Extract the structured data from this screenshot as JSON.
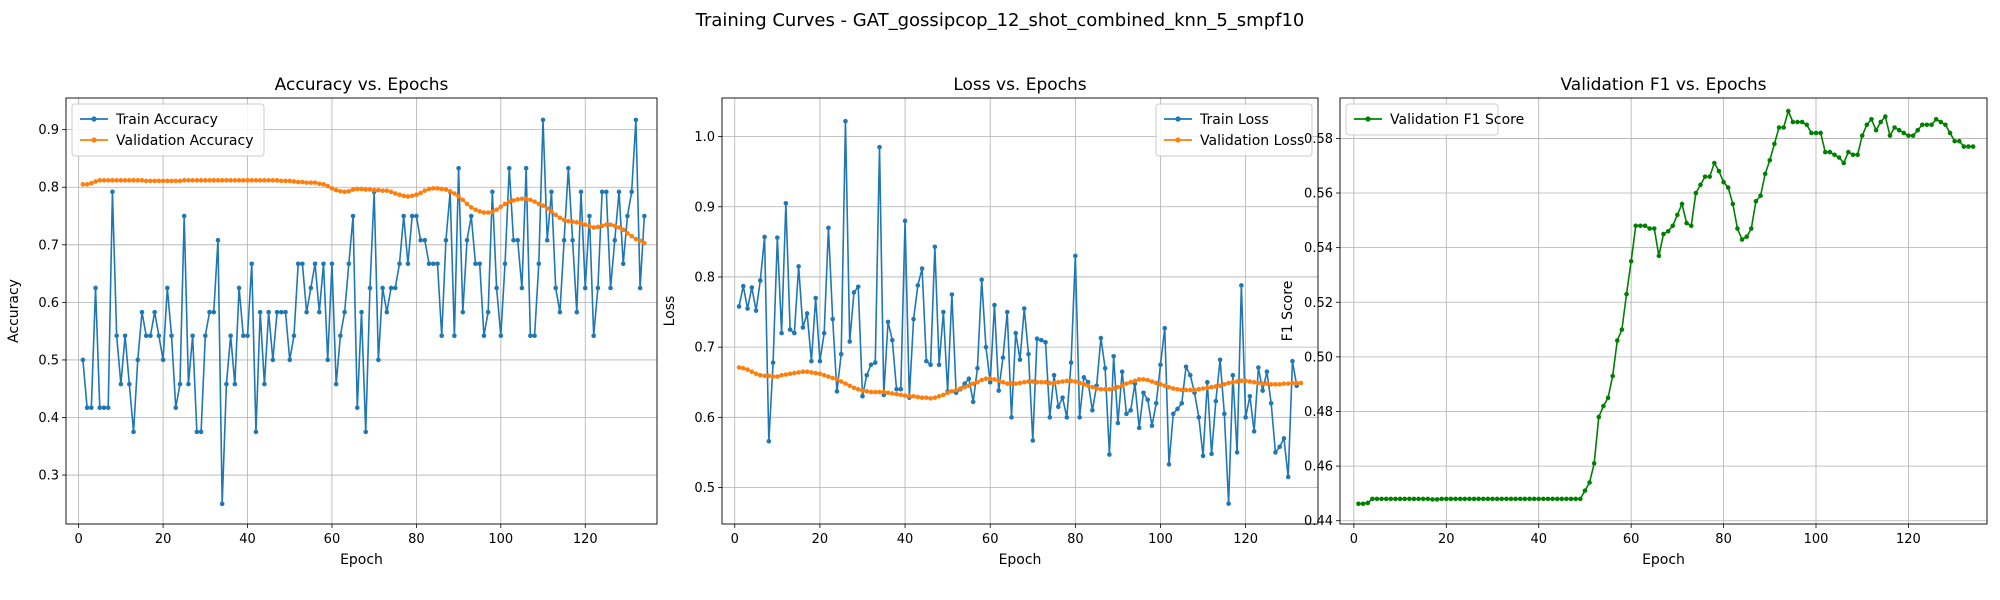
{
  "figure": {
    "title": "Training Curves - GAT_gossipcop_12_shot_combined_knn_5_smpf10"
  },
  "colors": {
    "train": "#1f77b4",
    "val": "#ff7f0e",
    "f1": "#008000"
  },
  "chart_data": [
    {
      "type": "line",
      "title": "Accuracy vs. Epochs",
      "xlabel": "Epoch",
      "ylabel": "Accuracy",
      "xlim": [
        -3,
        137
      ],
      "ylim": [
        0.215,
        0.955
      ],
      "xticks": [
        0,
        20,
        40,
        60,
        80,
        100,
        120
      ],
      "yticks": [
        0.3,
        0.4,
        0.5,
        0.6,
        0.7,
        0.8,
        0.9
      ],
      "grid": true,
      "legend": "upper-left",
      "series": [
        {
          "name": "Train Accuracy",
          "color": "#1f77b4",
          "x_start": 1,
          "values": [
            0.5,
            0.417,
            0.417,
            0.625,
            0.417,
            0.417,
            0.417,
            0.792,
            0.542,
            0.458,
            0.542,
            0.458,
            0.375,
            0.5,
            0.583,
            0.542,
            0.542,
            0.583,
            0.542,
            0.5,
            0.625,
            0.542,
            0.417,
            0.458,
            0.75,
            0.458,
            0.542,
            0.375,
            0.375,
            0.542,
            0.583,
            0.583,
            0.708,
            0.25,
            0.458,
            0.542,
            0.458,
            0.625,
            0.542,
            0.542,
            0.667,
            0.375,
            0.583,
            0.458,
            0.583,
            0.5,
            0.583,
            0.583,
            0.583,
            0.5,
            0.542,
            0.667,
            0.667,
            0.583,
            0.625,
            0.667,
            0.583,
            0.667,
            0.5,
            0.667,
            0.458,
            0.542,
            0.583,
            0.667,
            0.75,
            0.417,
            0.583,
            0.375,
            0.625,
            0.792,
            0.5,
            0.625,
            0.583,
            0.625,
            0.625,
            0.667,
            0.75,
            0.667,
            0.75,
            0.75,
            0.708,
            0.708,
            0.667,
            0.667,
            0.667,
            0.542,
            0.708,
            0.792,
            0.542,
            0.833,
            0.583,
            0.708,
            0.75,
            0.667,
            0.667,
            0.542,
            0.583,
            0.792,
            0.625,
            0.542,
            0.667,
            0.833,
            0.708,
            0.708,
            0.625,
            0.833,
            0.542,
            0.542,
            0.667,
            0.917,
            0.708,
            0.792,
            0.625,
            0.583,
            0.708,
            0.833,
            0.708,
            0.583,
            0.792,
            0.625,
            0.75,
            0.542,
            0.625,
            0.792,
            0.792,
            0.625,
            0.708,
            0.792,
            0.667,
            0.75,
            0.792,
            0.917,
            0.625,
            0.75
          ]
        },
        {
          "name": "Validation Accuracy",
          "color": "#ff7f0e",
          "x_start": 1,
          "values": [
            0.805,
            0.805,
            0.807,
            0.81,
            0.812,
            0.812,
            0.812,
            0.812,
            0.812,
            0.812,
            0.812,
            0.812,
            0.812,
            0.812,
            0.812,
            0.811,
            0.811,
            0.811,
            0.811,
            0.811,
            0.811,
            0.811,
            0.811,
            0.811,
            0.812,
            0.812,
            0.812,
            0.812,
            0.812,
            0.812,
            0.812,
            0.812,
            0.812,
            0.812,
            0.812,
            0.812,
            0.812,
            0.812,
            0.812,
            0.812,
            0.812,
            0.812,
            0.812,
            0.812,
            0.812,
            0.812,
            0.812,
            0.811,
            0.811,
            0.811,
            0.81,
            0.809,
            0.809,
            0.808,
            0.808,
            0.808,
            0.806,
            0.805,
            0.802,
            0.798,
            0.795,
            0.793,
            0.792,
            0.793,
            0.796,
            0.797,
            0.797,
            0.796,
            0.796,
            0.795,
            0.795,
            0.794,
            0.794,
            0.792,
            0.789,
            0.787,
            0.785,
            0.784,
            0.785,
            0.787,
            0.79,
            0.794,
            0.797,
            0.798,
            0.798,
            0.797,
            0.796,
            0.793,
            0.789,
            0.784,
            0.778,
            0.771,
            0.765,
            0.761,
            0.758,
            0.756,
            0.756,
            0.757,
            0.761,
            0.766,
            0.771,
            0.775,
            0.777,
            0.779,
            0.78,
            0.78,
            0.778,
            0.775,
            0.771,
            0.768,
            0.763,
            0.758,
            0.752,
            0.747,
            0.743,
            0.741,
            0.74,
            0.739,
            0.737,
            0.735,
            0.732,
            0.73,
            0.731,
            0.733,
            0.735,
            0.735,
            0.733,
            0.73,
            0.726,
            0.72,
            0.715,
            0.71,
            0.707,
            0.703
          ]
        }
      ]
    },
    {
      "type": "line",
      "title": "Loss vs. Epochs",
      "xlabel": "Epoch",
      "ylabel": "Loss",
      "xlim": [
        -3,
        137
      ],
      "ylim": [
        0.448,
        1.055
      ],
      "xticks": [
        0,
        20,
        40,
        60,
        80,
        100,
        120
      ],
      "yticks": [
        0.5,
        0.6,
        0.7,
        0.8,
        0.9,
        1.0
      ],
      "grid": true,
      "legend": "upper-right",
      "series": [
        {
          "name": "Train Loss",
          "color": "#1f77b4",
          "x_start": 1,
          "values": [
            0.758,
            0.787,
            0.755,
            0.785,
            0.752,
            0.795,
            0.857,
            0.566,
            0.678,
            0.856,
            0.72,
            0.905,
            0.725,
            0.72,
            0.815,
            0.728,
            0.748,
            0.68,
            0.77,
            0.68,
            0.72,
            0.87,
            0.74,
            0.637,
            0.69,
            1.022,
            0.708,
            0.778,
            0.786,
            0.63,
            0.66,
            0.675,
            0.678,
            0.985,
            0.632,
            0.736,
            0.71,
            0.64,
            0.64,
            0.88,
            0.628,
            0.74,
            0.788,
            0.812,
            0.68,
            0.675,
            0.843,
            0.675,
            0.75,
            0.637,
            0.775,
            0.635,
            0.64,
            0.648,
            0.655,
            0.622,
            0.67,
            0.796,
            0.7,
            0.65,
            0.76,
            0.638,
            0.685,
            0.75,
            0.6,
            0.72,
            0.682,
            0.755,
            0.69,
            0.567,
            0.712,
            0.71,
            0.707,
            0.6,
            0.66,
            0.615,
            0.628,
            0.6,
            0.678,
            0.83,
            0.6,
            0.657,
            0.65,
            0.61,
            0.645,
            0.713,
            0.67,
            0.547,
            0.687,
            0.592,
            0.665,
            0.605,
            0.61,
            0.648,
            0.585,
            0.635,
            0.625,
            0.588,
            0.62,
            0.675,
            0.727,
            0.533,
            0.605,
            0.612,
            0.62,
            0.672,
            0.66,
            0.635,
            0.6,
            0.545,
            0.65,
            0.548,
            0.623,
            0.682,
            0.605,
            0.477,
            0.66,
            0.55,
            0.788,
            0.6,
            0.63,
            0.58,
            0.671,
            0.638,
            0.665,
            0.62,
            0.55,
            0.558,
            0.57,
            0.515,
            0.68,
            0.645
          ]
        },
        {
          "name": "Validation Loss",
          "color": "#ff7f0e",
          "x_start": 1,
          "values": [
            0.671,
            0.67,
            0.668,
            0.665,
            0.662,
            0.66,
            0.659,
            0.659,
            0.658,
            0.658,
            0.66,
            0.661,
            0.662,
            0.663,
            0.664,
            0.665,
            0.665,
            0.664,
            0.663,
            0.662,
            0.66,
            0.658,
            0.656,
            0.654,
            0.651,
            0.648,
            0.645,
            0.642,
            0.64,
            0.638,
            0.637,
            0.636,
            0.636,
            0.636,
            0.636,
            0.635,
            0.634,
            0.633,
            0.632,
            0.631,
            0.63,
            0.63,
            0.629,
            0.628,
            0.628,
            0.627,
            0.628,
            0.63,
            0.632,
            0.635,
            0.637,
            0.639,
            0.641,
            0.643,
            0.645,
            0.648,
            0.65,
            0.653,
            0.655,
            0.655,
            0.654,
            0.652,
            0.65,
            0.648,
            0.648,
            0.648,
            0.649,
            0.65,
            0.651,
            0.651,
            0.65,
            0.65,
            0.65,
            0.649,
            0.649,
            0.65,
            0.651,
            0.652,
            0.652,
            0.651,
            0.649,
            0.647,
            0.645,
            0.643,
            0.641,
            0.64,
            0.64,
            0.64,
            0.641,
            0.643,
            0.645,
            0.648,
            0.65,
            0.652,
            0.654,
            0.654,
            0.653,
            0.651,
            0.649,
            0.647,
            0.645,
            0.643,
            0.641,
            0.64,
            0.639,
            0.639,
            0.639,
            0.639,
            0.64,
            0.641,
            0.642,
            0.643,
            0.644,
            0.645,
            0.647,
            0.649,
            0.65,
            0.651,
            0.652,
            0.652,
            0.651,
            0.65,
            0.649,
            0.648,
            0.648,
            0.647,
            0.647,
            0.647,
            0.648,
            0.648,
            0.649,
            0.649,
            0.649
          ]
        }
      ]
    },
    {
      "type": "line",
      "title": "Validation F1 vs. Epochs",
      "xlabel": "Epoch",
      "ylabel": "F1 Score",
      "xlim": [
        -3,
        137
      ],
      "ylim": [
        0.4388,
        0.5948
      ],
      "xticks": [
        0,
        20,
        40,
        60,
        80,
        100,
        120
      ],
      "yticks": [
        0.44,
        0.46,
        0.48,
        0.5,
        0.52,
        0.54,
        0.56,
        0.58
      ],
      "grid": true,
      "legend": "upper-left",
      "series": [
        {
          "name": "Validation F1 Score",
          "color": "#008000",
          "x_start": 1,
          "values": [
            0.4462,
            0.4462,
            0.4465,
            0.448,
            0.448,
            0.448,
            0.448,
            0.448,
            0.448,
            0.448,
            0.448,
            0.448,
            0.448,
            0.448,
            0.448,
            0.448,
            0.4478,
            0.4478,
            0.448,
            0.448,
            0.448,
            0.448,
            0.448,
            0.448,
            0.448,
            0.448,
            0.448,
            0.448,
            0.448,
            0.448,
            0.448,
            0.448,
            0.448,
            0.448,
            0.448,
            0.448,
            0.448,
            0.448,
            0.448,
            0.448,
            0.448,
            0.448,
            0.448,
            0.448,
            0.448,
            0.448,
            0.448,
            0.448,
            0.448,
            0.451,
            0.454,
            0.461,
            0.478,
            0.482,
            0.485,
            0.493,
            0.506,
            0.51,
            0.523,
            0.535,
            0.548,
            0.548,
            0.548,
            0.547,
            0.547,
            0.537,
            0.545,
            0.546,
            0.548,
            0.552,
            0.556,
            0.549,
            0.548,
            0.56,
            0.563,
            0.566,
            0.566,
            0.571,
            0.568,
            0.564,
            0.562,
            0.556,
            0.547,
            0.543,
            0.544,
            0.547,
            0.557,
            0.559,
            0.567,
            0.572,
            0.578,
            0.584,
            0.584,
            0.59,
            0.586,
            0.586,
            0.586,
            0.585,
            0.582,
            0.582,
            0.582,
            0.575,
            0.575,
            0.574,
            0.573,
            0.571,
            0.575,
            0.574,
            0.574,
            0.581,
            0.585,
            0.587,
            0.583,
            0.586,
            0.588,
            0.581,
            0.584,
            0.583,
            0.582,
            0.581,
            0.581,
            0.583,
            0.585,
            0.585,
            0.585,
            0.587,
            0.586,
            0.585,
            0.582,
            0.579,
            0.579,
            0.577,
            0.577,
            0.577
          ]
        }
      ]
    }
  ]
}
